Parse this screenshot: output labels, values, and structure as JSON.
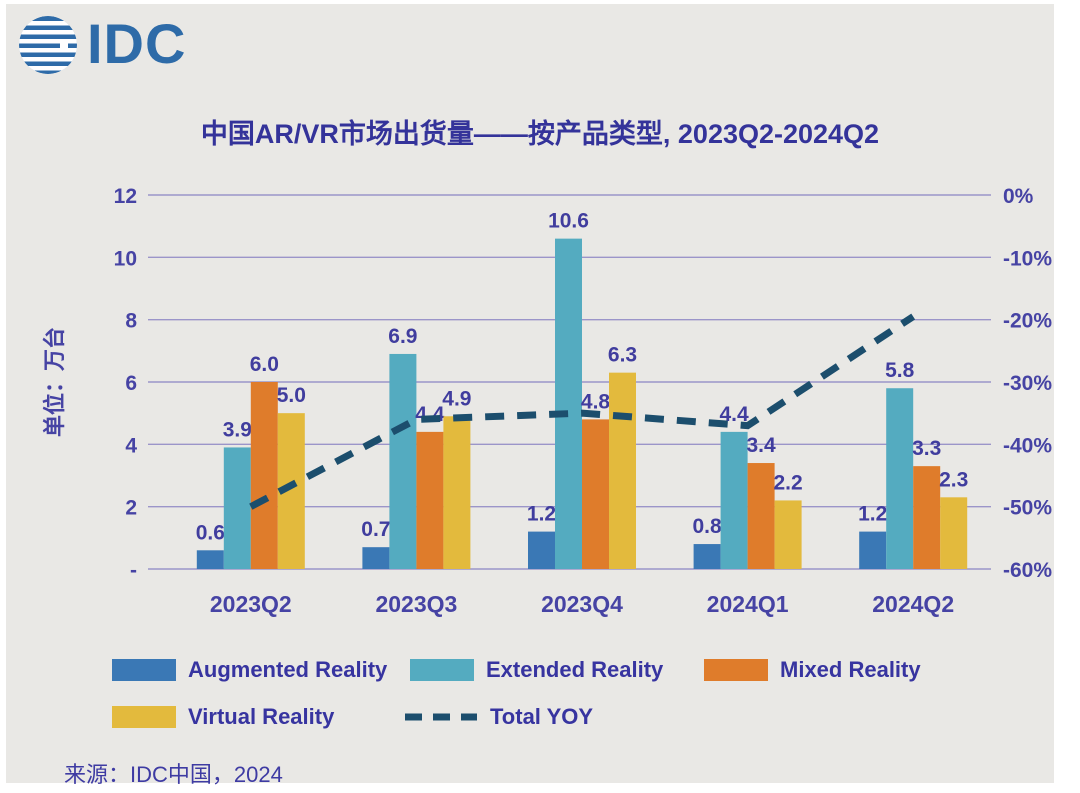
{
  "brand": {
    "logo_text": "IDC"
  },
  "header": {
    "title": "中国AR/VR市场出货量——按产品类型, 2023Q2-2024Q2"
  },
  "footer": {
    "source": "来源：IDC中国，2024"
  },
  "colors": {
    "background": "#E9E8E5",
    "frame": "#FFFFFF",
    "grid": "#9B95C9",
    "axis_text": "#4643A4",
    "data_label": "#403D9E",
    "title_text": "#34339A",
    "legend_text": "#3734A0",
    "logo_blue": "#2E6BA8"
  },
  "chart_data": {
    "type": "bar",
    "subtype": "grouped-bars-with-dashed-line-combo-dual-axis",
    "title": "中国AR/VR市场出货量——按产品类型, 2023Q2-2024Q2",
    "categories": [
      "2023Q2",
      "2023Q3",
      "2023Q4",
      "2024Q1",
      "2024Q2"
    ],
    "series": [
      {
        "name": "Augmented Reality",
        "color": "#3A78B5",
        "axis": "left",
        "values": [
          0.6,
          0.7,
          1.2,
          0.8,
          1.2
        ]
      },
      {
        "name": "Extended Reality",
        "color": "#54ABC0",
        "axis": "left",
        "values": [
          3.9,
          6.9,
          10.6,
          4.4,
          5.8
        ]
      },
      {
        "name": "Mixed Reality",
        "color": "#DF7C2B",
        "axis": "left",
        "values": [
          6.0,
          4.4,
          4.8,
          3.4,
          3.3
        ]
      },
      {
        "name": "Virtual Reality",
        "color": "#E3BA3D",
        "axis": "left",
        "values": [
          5.0,
          4.9,
          6.3,
          2.2,
          2.3
        ]
      }
    ],
    "line_series": [
      {
        "name": "Total YOY",
        "color": "#1C4E6D",
        "style": "dashed",
        "axis": "right",
        "estimated_from_plot": true,
        "values": [
          -50,
          -36,
          -35,
          -37,
          -19.5
        ]
      }
    ],
    "left_axis": {
      "title": "单位：万台",
      "min": 0,
      "max": 12,
      "tick_labels": [
        "12",
        "10",
        "8",
        "6",
        "4",
        "2",
        "-"
      ]
    },
    "right_axis": {
      "min": -60,
      "max": 0,
      "tick_labels": [
        "0%",
        "-10%",
        "-20%",
        "-30%",
        "-40%",
        "-50%",
        "-60%"
      ]
    },
    "grid": true,
    "legend_position": "bottom",
    "value_label_format": "one_decimal"
  },
  "legend": {
    "items": [
      {
        "label": "Augmented Reality",
        "color": "#3A78B5",
        "type": "swatch"
      },
      {
        "label": "Extended Reality",
        "color": "#54ABC0",
        "type": "swatch"
      },
      {
        "label": "Mixed Reality",
        "color": "#DF7C2B",
        "type": "swatch"
      },
      {
        "label": "Virtual Reality",
        "color": "#E3BA3D",
        "type": "swatch"
      },
      {
        "label": "Total YOY",
        "color": "#1C4E6D",
        "type": "dashed-line"
      }
    ]
  }
}
